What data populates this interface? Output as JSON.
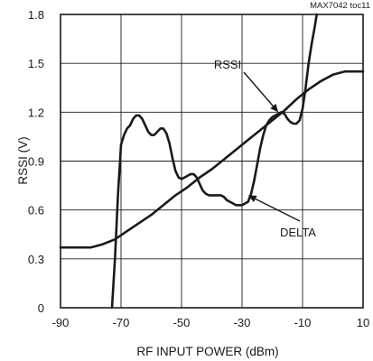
{
  "chart_data": {
    "type": "line",
    "title": "",
    "corner_label": "MAX7042 toc11",
    "xlabel": "RF INPUT POWER (dBm)",
    "ylabel": "RSSI (V)",
    "xlim": [
      -90,
      10
    ],
    "ylim": [
      0,
      1.8
    ],
    "x_ticks": [
      -90,
      -70,
      -50,
      -30,
      -10,
      10
    ],
    "x_tick_labels": [
      "-90",
      "-70",
      "-50",
      "-30",
      "-10",
      "10"
    ],
    "y_ticks": [
      0,
      0.3,
      0.6,
      0.9,
      1.2,
      1.5,
      1.8
    ],
    "y_tick_labels": [
      "0",
      "0.3",
      "0.6",
      "0.9",
      "1.2",
      "1.5",
      "1.8"
    ],
    "grid": true,
    "annotations": [
      {
        "text": "RSSI",
        "points_to": [
          -18,
          1.2
        ]
      },
      {
        "text": "DELTA",
        "points_to": [
          -28,
          0.69
        ]
      }
    ],
    "series": [
      {
        "name": "RSSI",
        "color": "#1a1a1a",
        "x": [
          -90,
          -84,
          -80,
          -76,
          -72,
          -68,
          -64,
          -60,
          -56,
          -52,
          -48,
          -44,
          -40,
          -36,
          -32,
          -28,
          -24,
          -20,
          -16,
          -12,
          -8,
          -4,
          0,
          4,
          8,
          10
        ],
        "y": [
          0.37,
          0.37,
          0.37,
          0.39,
          0.42,
          0.47,
          0.52,
          0.57,
          0.63,
          0.69,
          0.74,
          0.8,
          0.85,
          0.91,
          0.97,
          1.03,
          1.09,
          1.15,
          1.21,
          1.28,
          1.34,
          1.39,
          1.43,
          1.45,
          1.45,
          1.45
        ]
      },
      {
        "name": "DELTA",
        "color": "#1a1a1a",
        "x": [
          -73,
          -72,
          -71,
          -70,
          -69,
          -68,
          -67,
          -66,
          -65,
          -64,
          -63,
          -62,
          -61,
          -60,
          -59,
          -58,
          -57,
          -56,
          -55,
          -54,
          -53,
          -52,
          -51,
          -50,
          -49,
          -48,
          -47,
          -46,
          -45,
          -44,
          -43,
          -42,
          -41,
          -40,
          -39,
          -38,
          -37,
          -36,
          -35,
          -34,
          -33,
          -32,
          -31,
          -30,
          -29,
          -28,
          -27,
          -26,
          -25,
          -24,
          -23,
          -22,
          -21,
          -20,
          -19,
          -18,
          -17,
          -16,
          -15,
          -14,
          -13,
          -12,
          -11,
          -10,
          -9,
          -8,
          -7,
          -6,
          -5.3
        ],
        "y": [
          0.0,
          0.3,
          0.7,
          1.0,
          1.06,
          1.1,
          1.12,
          1.16,
          1.18,
          1.18,
          1.16,
          1.12,
          1.08,
          1.06,
          1.06,
          1.08,
          1.1,
          1.1,
          1.07,
          1.01,
          0.92,
          0.84,
          0.8,
          0.79,
          0.8,
          0.81,
          0.82,
          0.82,
          0.8,
          0.76,
          0.72,
          0.7,
          0.69,
          0.69,
          0.69,
          0.69,
          0.69,
          0.68,
          0.66,
          0.65,
          0.64,
          0.63,
          0.63,
          0.63,
          0.64,
          0.65,
          0.7,
          0.78,
          0.88,
          0.98,
          1.06,
          1.12,
          1.15,
          1.17,
          1.18,
          1.19,
          1.2,
          1.19,
          1.16,
          1.14,
          1.13,
          1.13,
          1.15,
          1.22,
          1.35,
          1.5,
          1.62,
          1.72,
          1.8
        ]
      }
    ]
  }
}
